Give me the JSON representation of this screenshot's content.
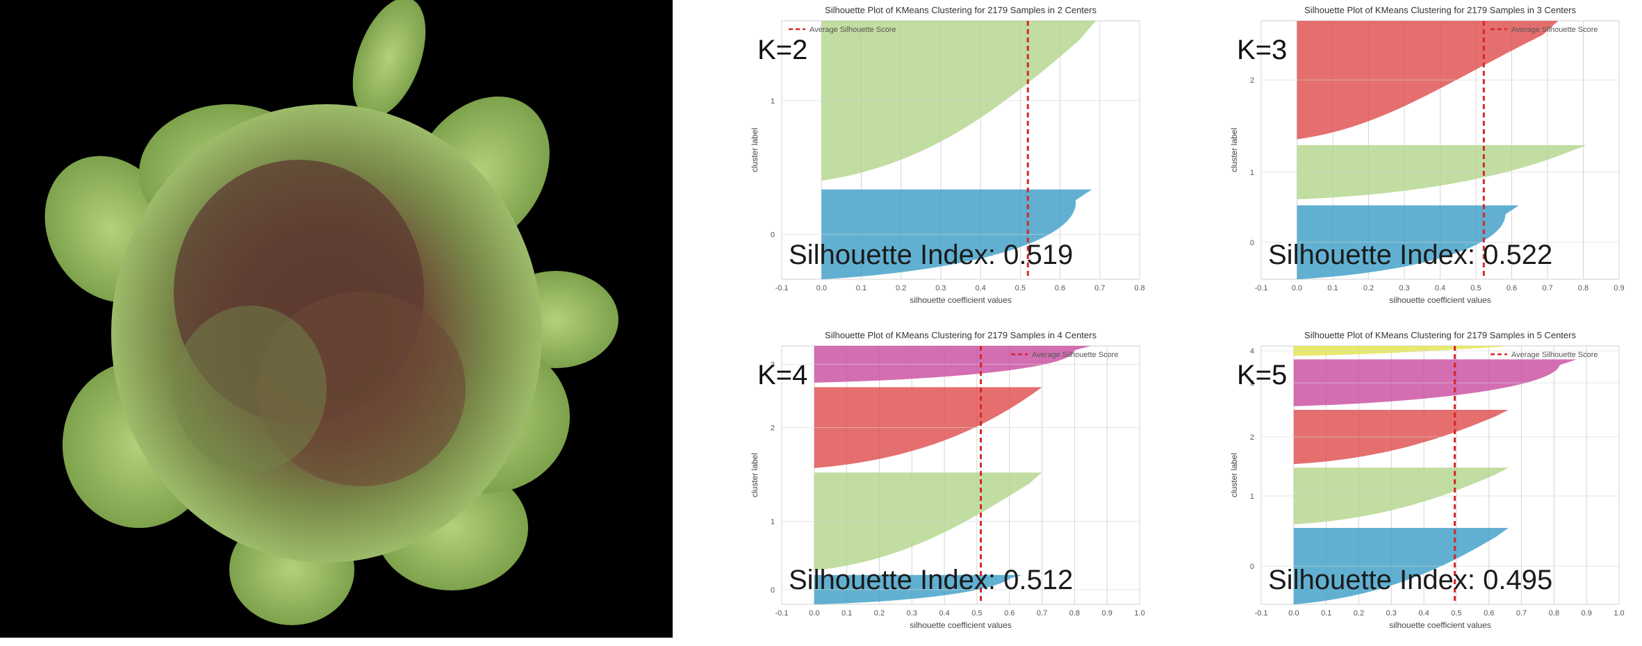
{
  "photo": {
    "alt_icon": "lettuce-photo"
  },
  "colors": {
    "blue": "#3a9cc7",
    "green": "#b2d48a",
    "red": "#de4b4b",
    "magenta": "#c84a9f",
    "yellow": "#e3e34a",
    "avg_line": "#d62728",
    "grid": "#d4d4d4"
  },
  "chart_data": [
    {
      "type": "area",
      "title": "Silhouette Plot of KMeans Clustering for 2179 Samples in 2 Centers",
      "xlabel": "silhouette coefficient values",
      "ylabel": "cluster label",
      "xlim": [
        -0.1,
        0.8
      ],
      "xticks": [
        "-0.1",
        "0.0",
        "0.1",
        "0.2",
        "0.3",
        "0.4",
        "0.5",
        "0.6",
        "0.7",
        "0.8"
      ],
      "legend": "top-left",
      "legend_label": "Average Silhouette Score",
      "avg_score": 0.519,
      "k_label": "K=2",
      "si_label": "Silhouette Index: 0.519",
      "clusters": [
        {
          "label": "0",
          "color": "blue",
          "size": 0.36,
          "max": 0.68,
          "mid": 0.65
        },
        {
          "label": "1",
          "color": "green",
          "size": 0.64,
          "max": 0.69,
          "mid": 0.45
        }
      ]
    },
    {
      "type": "area",
      "title": "Silhouette Plot of KMeans Clustering for 2179 Samples in 3 Centers",
      "xlabel": "silhouette coefficient values",
      "ylabel": "cluster label",
      "xlim": [
        -0.1,
        0.9
      ],
      "xticks": [
        "-0.1",
        "0.0",
        "0.1",
        "0.2",
        "0.3",
        "0.4",
        "0.5",
        "0.6",
        "0.7",
        "0.8",
        "0.9"
      ],
      "legend": "top-right",
      "legend_label": "Average Silhouette Score",
      "avg_score": 0.522,
      "k_label": "K=3",
      "si_label": "Silhouette Index: 0.522",
      "clusters": [
        {
          "label": "0",
          "color": "blue",
          "size": 0.3,
          "max": 0.62,
          "mid": 0.58
        },
        {
          "label": "1",
          "color": "green",
          "size": 0.22,
          "max": 0.81,
          "mid": 0.6
        },
        {
          "label": "2",
          "color": "red",
          "size": 0.48,
          "max": 0.73,
          "mid": 0.4
        }
      ]
    },
    {
      "type": "area",
      "title": "Silhouette Plot of KMeans Clustering for 2179 Samples in 4 Centers",
      "xlabel": "silhouette coefficient values",
      "ylabel": "cluster label",
      "xlim": [
        -0.1,
        1.0
      ],
      "xticks": [
        "-0.1",
        "0.0",
        "0.1",
        "0.2",
        "0.3",
        "0.4",
        "0.5",
        "0.6",
        "0.7",
        "0.8",
        "0.9",
        "1.0"
      ],
      "legend": "top-right",
      "legend_label": "Average Silhouette Score",
      "avg_score": 0.512,
      "k_label": "K=4",
      "si_label": "Silhouette Index: 0.512",
      "clusters": [
        {
          "label": "0",
          "color": "blue",
          "size": 0.12,
          "max": 0.64,
          "mid": 0.55
        },
        {
          "label": "1",
          "color": "green",
          "size": 0.4,
          "max": 0.7,
          "mid": 0.45
        },
        {
          "label": "2",
          "color": "red",
          "size": 0.33,
          "max": 0.7,
          "mid": 0.5
        },
        {
          "label": "3",
          "color": "magenta",
          "size": 0.15,
          "max": 0.85,
          "mid": 0.8
        }
      ]
    },
    {
      "type": "area",
      "title": "Silhouette Plot of KMeans Clustering for 2179 Samples in 5 Centers",
      "xlabel": "silhouette coefficient values",
      "ylabel": "cluster label",
      "xlim": [
        -0.1,
        1.0
      ],
      "xticks": [
        "-0.1",
        "0.0",
        "0.1",
        "0.2",
        "0.3",
        "0.4",
        "0.5",
        "0.6",
        "0.7",
        "0.8",
        "0.9",
        "1.0"
      ],
      "legend": "top-right",
      "legend_label": "Average Silhouette Score",
      "avg_score": 0.495,
      "k_label": "K=5",
      "si_label": "Silhouette Index: 0.495",
      "clusters": [
        {
          "label": "0",
          "color": "blue",
          "size": 0.31,
          "max": 0.66,
          "mid": 0.45
        },
        {
          "label": "1",
          "color": "green",
          "size": 0.23,
          "max": 0.66,
          "mid": 0.45
        },
        {
          "label": "2",
          "color": "red",
          "size": 0.22,
          "max": 0.66,
          "mid": 0.45
        },
        {
          "label": "3",
          "color": "magenta",
          "size": 0.19,
          "max": 0.87,
          "mid": 0.8
        },
        {
          "label": "4",
          "color": "yellow",
          "size": 0.04,
          "max": 0.66,
          "mid": 0.4
        }
      ]
    }
  ]
}
